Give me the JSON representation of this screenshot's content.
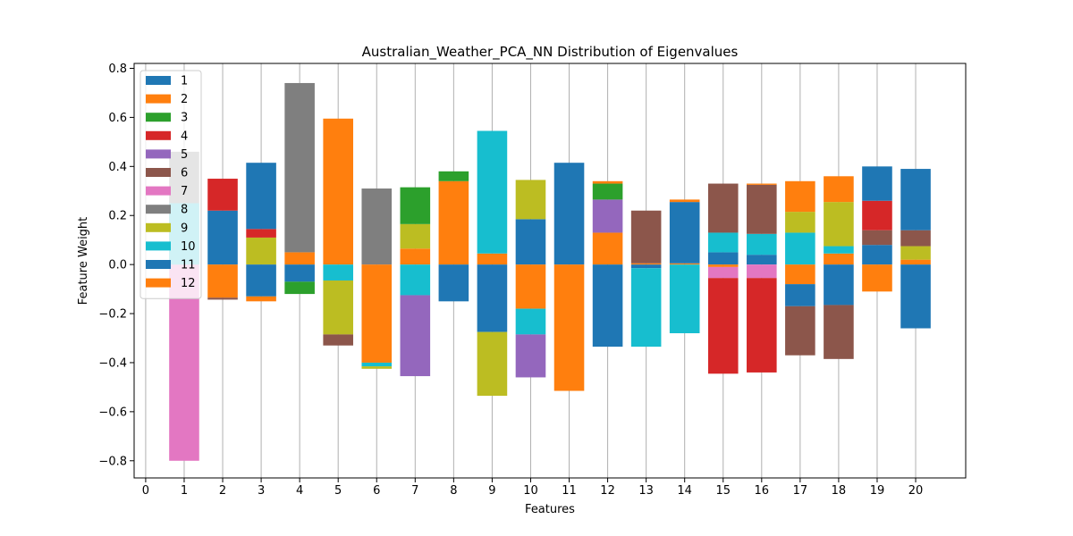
{
  "chart_data": {
    "type": "bar",
    "stacked": true,
    "title": "Australian_Weather_PCA_NN Distribution of Eigenvalues",
    "xlabel": "Features",
    "ylabel": "Feature Weight",
    "xlim": [
      -0.3,
      21.3
    ],
    "ylim": [
      -0.87,
      0.82
    ],
    "xticks": [
      0,
      1,
      2,
      3,
      4,
      5,
      6,
      7,
      8,
      9,
      10,
      11,
      12,
      13,
      14,
      15,
      16,
      17,
      18,
      19,
      20
    ],
    "yticks": [
      -0.8,
      -0.6,
      -0.4,
      -0.2,
      0.0,
      0.2,
      0.4,
      0.6,
      0.8
    ],
    "ytick_labels": [
      "−0.8",
      "−0.6",
      "−0.4",
      "−0.2",
      "0.0",
      "0.2",
      "0.4",
      "0.6",
      "0.8"
    ],
    "grid": "vertical",
    "legend_position": "upper-left",
    "legend": [
      {
        "name": "1",
        "color": "#1f77b4"
      },
      {
        "name": "2",
        "color": "#ff7f0e"
      },
      {
        "name": "3",
        "color": "#2ca02c"
      },
      {
        "name": "4",
        "color": "#d62728"
      },
      {
        "name": "5",
        "color": "#9467bd"
      },
      {
        "name": "6",
        "color": "#8c564b"
      },
      {
        "name": "7",
        "color": "#e377c2"
      },
      {
        "name": "8",
        "color": "#7f7f7f"
      },
      {
        "name": "9",
        "color": "#bcbd22"
      },
      {
        "name": "10",
        "color": "#17becf"
      },
      {
        "name": "11",
        "color": "#1f77b4"
      },
      {
        "name": "12",
        "color": "#ff7f0e"
      }
    ],
    "segments": [
      {
        "x": 1,
        "y0": 0.0,
        "y1": -0.8,
        "color": "#e377c2"
      },
      {
        "x": 1,
        "y0": 0.0,
        "y1": 0.46,
        "color": "#7f7f7f"
      },
      {
        "x": 1,
        "y0": 0.0,
        "y1": 0.25,
        "color": "#17becf"
      },
      {
        "x": 2,
        "y0": 0.0,
        "y1": 0.22,
        "color": "#1f77b4"
      },
      {
        "x": 2,
        "y0": 0.22,
        "y1": 0.35,
        "color": "#d62728"
      },
      {
        "x": 2,
        "y0": 0.0,
        "y1": -0.135,
        "color": "#ff7f0e"
      },
      {
        "x": 2,
        "y0": -0.135,
        "y1": -0.143,
        "color": "#8c564b"
      },
      {
        "x": 3,
        "y0": 0.0,
        "y1": 0.11,
        "color": "#bcbd22"
      },
      {
        "x": 3,
        "y0": 0.11,
        "y1": 0.145,
        "color": "#d62728"
      },
      {
        "x": 3,
        "y0": 0.145,
        "y1": 0.415,
        "color": "#1f77b4"
      },
      {
        "x": 3,
        "y0": 0.0,
        "y1": -0.13,
        "color": "#1f77b4"
      },
      {
        "x": 3,
        "y0": -0.13,
        "y1": -0.15,
        "color": "#ff7f0e"
      },
      {
        "x": 4,
        "y0": 0.0,
        "y1": 0.05,
        "color": "#ff7f0e"
      },
      {
        "x": 4,
        "y0": 0.05,
        "y1": 0.74,
        "color": "#7f7f7f"
      },
      {
        "x": 4,
        "y0": 0.0,
        "y1": -0.07,
        "color": "#1f77b4"
      },
      {
        "x": 4,
        "y0": -0.07,
        "y1": -0.12,
        "color": "#2ca02c"
      },
      {
        "x": 5,
        "y0": 0.0,
        "y1": 0.595,
        "color": "#ff7f0e"
      },
      {
        "x": 5,
        "y0": 0.0,
        "y1": -0.065,
        "color": "#17becf"
      },
      {
        "x": 5,
        "y0": -0.065,
        "y1": -0.285,
        "color": "#bcbd22"
      },
      {
        "x": 5,
        "y0": -0.285,
        "y1": -0.33,
        "color": "#8c564b"
      },
      {
        "x": 6,
        "y0": 0.0,
        "y1": 0.31,
        "color": "#7f7f7f"
      },
      {
        "x": 6,
        "y0": 0.0,
        "y1": -0.4,
        "color": "#ff7f0e"
      },
      {
        "x": 6,
        "y0": -0.4,
        "y1": -0.415,
        "color": "#17becf"
      },
      {
        "x": 6,
        "y0": -0.415,
        "y1": -0.425,
        "color": "#bcbd22"
      },
      {
        "x": 7,
        "y0": 0.0,
        "y1": 0.065,
        "color": "#ff7f0e"
      },
      {
        "x": 7,
        "y0": 0.065,
        "y1": 0.165,
        "color": "#bcbd22"
      },
      {
        "x": 7,
        "y0": 0.165,
        "y1": 0.315,
        "color": "#2ca02c"
      },
      {
        "x": 7,
        "y0": 0.0,
        "y1": -0.125,
        "color": "#17becf"
      },
      {
        "x": 7,
        "y0": -0.125,
        "y1": -0.455,
        "color": "#9467bd"
      },
      {
        "x": 8,
        "y0": 0.0,
        "y1": 0.34,
        "color": "#ff7f0e"
      },
      {
        "x": 8,
        "y0": 0.34,
        "y1": 0.38,
        "color": "#2ca02c"
      },
      {
        "x": 8,
        "y0": 0.0,
        "y1": -0.15,
        "color": "#1f77b4"
      },
      {
        "x": 9,
        "y0": 0.0,
        "y1": 0.045,
        "color": "#ff7f0e"
      },
      {
        "x": 9,
        "y0": 0.045,
        "y1": 0.545,
        "color": "#17becf"
      },
      {
        "x": 9,
        "y0": 0.0,
        "y1": -0.275,
        "color": "#1f77b4"
      },
      {
        "x": 9,
        "y0": -0.275,
        "y1": -0.535,
        "color": "#bcbd22"
      },
      {
        "x": 10,
        "y0": 0.0,
        "y1": 0.185,
        "color": "#1f77b4"
      },
      {
        "x": 10,
        "y0": 0.185,
        "y1": 0.345,
        "color": "#bcbd22"
      },
      {
        "x": 10,
        "y0": 0.0,
        "y1": -0.18,
        "color": "#ff7f0e"
      },
      {
        "x": 10,
        "y0": -0.18,
        "y1": -0.285,
        "color": "#17becf"
      },
      {
        "x": 10,
        "y0": -0.285,
        "y1": -0.46,
        "color": "#9467bd"
      },
      {
        "x": 11,
        "y0": 0.0,
        "y1": 0.415,
        "color": "#1f77b4"
      },
      {
        "x": 11,
        "y0": 0.0,
        "y1": -0.515,
        "color": "#ff7f0e"
      },
      {
        "x": 12,
        "y0": 0.0,
        "y1": 0.13,
        "color": "#ff7f0e"
      },
      {
        "x": 12,
        "y0": 0.13,
        "y1": 0.265,
        "color": "#9467bd"
      },
      {
        "x": 12,
        "y0": 0.265,
        "y1": 0.33,
        "color": "#2ca02c"
      },
      {
        "x": 12,
        "y0": 0.33,
        "y1": 0.34,
        "color": "#ff7f0e"
      },
      {
        "x": 12,
        "y0": 0.0,
        "y1": -0.335,
        "color": "#1f77b4"
      },
      {
        "x": 13,
        "y0": 0.0,
        "y1": 0.005,
        "color": "#ff7f0e"
      },
      {
        "x": 13,
        "y0": 0.005,
        "y1": 0.22,
        "color": "#8c564b"
      },
      {
        "x": 13,
        "y0": 0.0,
        "y1": -0.015,
        "color": "#1f77b4"
      },
      {
        "x": 13,
        "y0": -0.015,
        "y1": -0.335,
        "color": "#17becf"
      },
      {
        "x": 14,
        "y0": 0.0,
        "y1": 0.005,
        "color": "#ff7f0e"
      },
      {
        "x": 14,
        "y0": 0.005,
        "y1": 0.255,
        "color": "#1f77b4"
      },
      {
        "x": 14,
        "y0": 0.255,
        "y1": 0.265,
        "color": "#ff7f0e"
      },
      {
        "x": 14,
        "y0": 0.0,
        "y1": -0.28,
        "color": "#17becf"
      },
      {
        "x": 15,
        "y0": 0.0,
        "y1": 0.05,
        "color": "#1f77b4"
      },
      {
        "x": 15,
        "y0": 0.05,
        "y1": 0.13,
        "color": "#17becf"
      },
      {
        "x": 15,
        "y0": 0.13,
        "y1": 0.33,
        "color": "#8c564b"
      },
      {
        "x": 15,
        "y0": 0.0,
        "y1": -0.01,
        "color": "#ff7f0e"
      },
      {
        "x": 15,
        "y0": -0.01,
        "y1": -0.055,
        "color": "#e377c2"
      },
      {
        "x": 15,
        "y0": -0.055,
        "y1": -0.445,
        "color": "#d62728"
      },
      {
        "x": 16,
        "y0": 0.0,
        "y1": 0.04,
        "color": "#1f77b4"
      },
      {
        "x": 16,
        "y0": 0.04,
        "y1": 0.125,
        "color": "#17becf"
      },
      {
        "x": 16,
        "y0": 0.125,
        "y1": 0.325,
        "color": "#8c564b"
      },
      {
        "x": 16,
        "y0": 0.325,
        "y1": 0.33,
        "color": "#ff7f0e"
      },
      {
        "x": 16,
        "y0": 0.0,
        "y1": -0.055,
        "color": "#e377c2"
      },
      {
        "x": 16,
        "y0": -0.055,
        "y1": -0.44,
        "color": "#d62728"
      },
      {
        "x": 17,
        "y0": 0.0,
        "y1": 0.13,
        "color": "#17becf"
      },
      {
        "x": 17,
        "y0": 0.13,
        "y1": 0.215,
        "color": "#bcbd22"
      },
      {
        "x": 17,
        "y0": 0.215,
        "y1": 0.34,
        "color": "#ff7f0e"
      },
      {
        "x": 17,
        "y0": 0.0,
        "y1": -0.08,
        "color": "#ff7f0e"
      },
      {
        "x": 17,
        "y0": -0.08,
        "y1": -0.17,
        "color": "#1f77b4"
      },
      {
        "x": 17,
        "y0": -0.17,
        "y1": -0.37,
        "color": "#8c564b"
      },
      {
        "x": 18,
        "y0": 0.0,
        "y1": 0.045,
        "color": "#ff7f0e"
      },
      {
        "x": 18,
        "y0": 0.045,
        "y1": 0.075,
        "color": "#17becf"
      },
      {
        "x": 18,
        "y0": 0.075,
        "y1": 0.255,
        "color": "#bcbd22"
      },
      {
        "x": 18,
        "y0": 0.255,
        "y1": 0.36,
        "color": "#ff7f0e"
      },
      {
        "x": 18,
        "y0": 0.0,
        "y1": -0.165,
        "color": "#1f77b4"
      },
      {
        "x": 18,
        "y0": -0.165,
        "y1": -0.385,
        "color": "#8c564b"
      },
      {
        "x": 19,
        "y0": 0.0,
        "y1": 0.08,
        "color": "#1f77b4"
      },
      {
        "x": 19,
        "y0": 0.08,
        "y1": 0.14,
        "color": "#8c564b"
      },
      {
        "x": 19,
        "y0": 0.14,
        "y1": 0.26,
        "color": "#d62728"
      },
      {
        "x": 19,
        "y0": 0.26,
        "y1": 0.4,
        "color": "#1f77b4"
      },
      {
        "x": 19,
        "y0": 0.0,
        "y1": -0.11,
        "color": "#ff7f0e"
      },
      {
        "x": 20,
        "y0": 0.0,
        "y1": 0.02,
        "color": "#ff7f0e"
      },
      {
        "x": 20,
        "y0": 0.02,
        "y1": 0.075,
        "color": "#bcbd22"
      },
      {
        "x": 20,
        "y0": 0.075,
        "y1": 0.14,
        "color": "#8c564b"
      },
      {
        "x": 20,
        "y0": 0.14,
        "y1": 0.39,
        "color": "#1f77b4"
      },
      {
        "x": 20,
        "y0": 0.0,
        "y1": -0.26,
        "color": "#1f77b4"
      }
    ]
  }
}
